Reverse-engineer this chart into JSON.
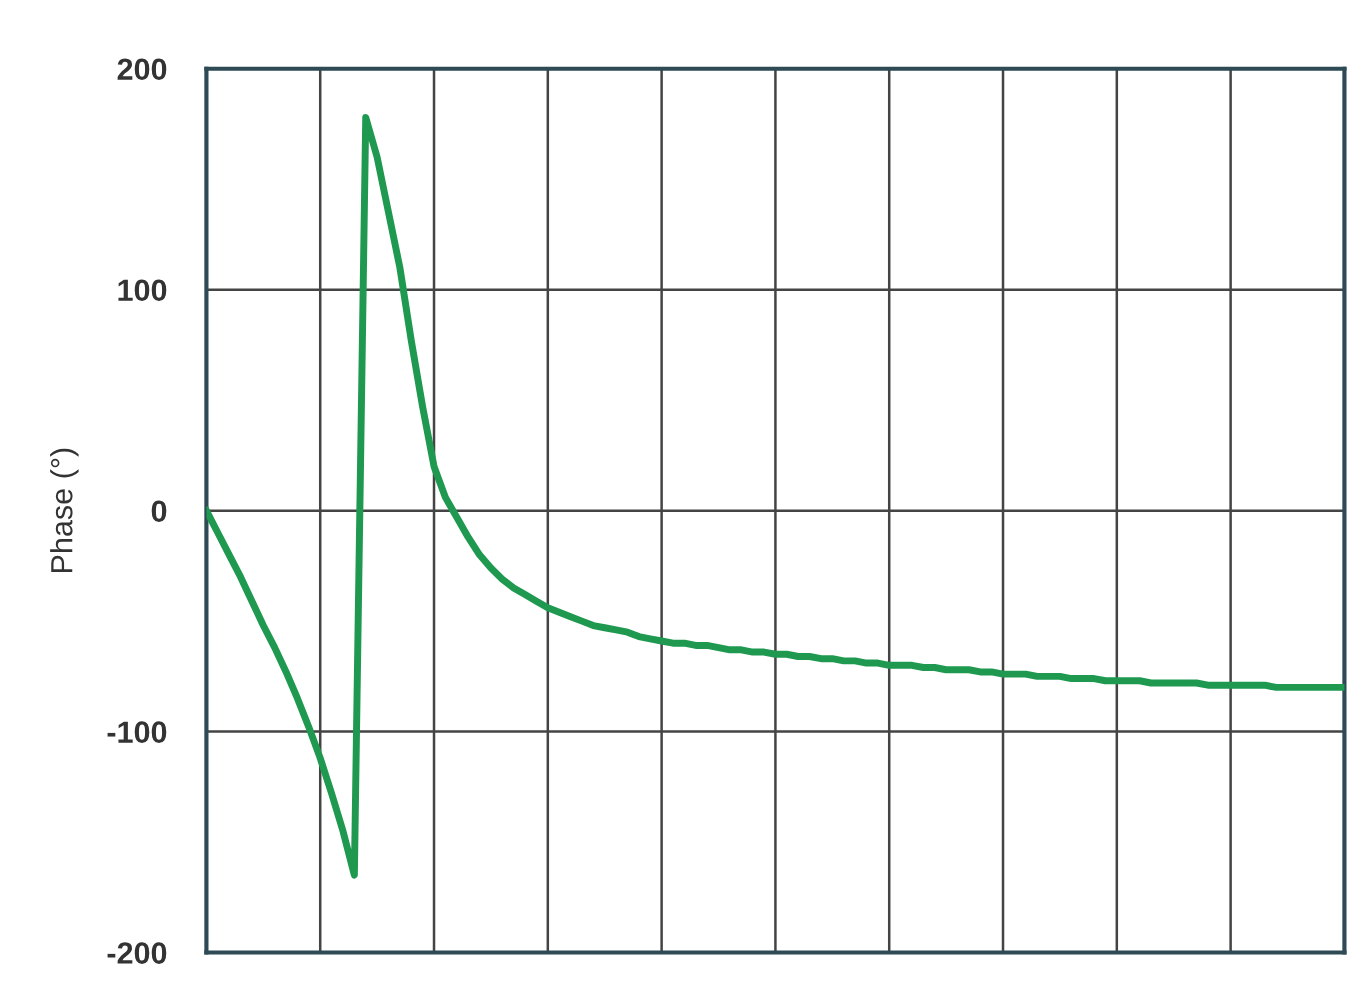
{
  "chart_data": {
    "type": "line",
    "ylabel": "Phase (°)",
    "categories": [
      null,
      null,
      null,
      null,
      null,
      null,
      null,
      null,
      null,
      null,
      null,
      null,
      null,
      null,
      null,
      null,
      null,
      null,
      null,
      null,
      null,
      null,
      null,
      null,
      null,
      null,
      null,
      null,
      null,
      null,
      null,
      null,
      null,
      null,
      null,
      null,
      null,
      null,
      null,
      null,
      null,
      null,
      null,
      null,
      null,
      null,
      null,
      null,
      null,
      null,
      null,
      null,
      null,
      null,
      null,
      null,
      null,
      null,
      null,
      null,
      null,
      null,
      null,
      null,
      null,
      null,
      null,
      null,
      null,
      null,
      null,
      null,
      null,
      null,
      null,
      null,
      null,
      null,
      null,
      null,
      null,
      null,
      null,
      null,
      null,
      null,
      null,
      null,
      null,
      null,
      null,
      null,
      null,
      null,
      null,
      null,
      null,
      null,
      null,
      null,
      null
    ],
    "series": [
      {
        "color": "#1f9950",
        "values": [
          0,
          -10,
          -20,
          -30,
          -41,
          -52,
          -62,
          -73,
          -85,
          -98,
          -112,
          -128,
          -145,
          -165,
          178,
          160,
          135,
          110,
          77,
          47,
          20,
          6,
          -3,
          -12,
          -20,
          -26,
          -31,
          -35,
          -38,
          -41,
          -44,
          -46,
          -48,
          -50,
          -52,
          -53,
          -54,
          -55,
          -57,
          -58,
          -59,
          -60,
          -60,
          -61,
          -61,
          -62,
          -63,
          -63,
          -64,
          -64,
          -65,
          -65,
          -66,
          -66,
          -67,
          -67,
          -68,
          -68,
          -69,
          -69,
          -70,
          -70,
          -70,
          -71,
          -71,
          -72,
          -72,
          -72,
          -73,
          -73,
          -74,
          -74,
          -74,
          -75,
          -75,
          -75,
          -76,
          -76,
          -76,
          -77,
          -77,
          -77,
          -77,
          -78,
          -78,
          -78,
          -78,
          -78,
          -79,
          -79,
          -79,
          -79,
          -79,
          -79,
          -80,
          -80,
          -80,
          -80,
          -80,
          -80,
          -80
        ]
      }
    ],
    "ylim": [
      -200,
      200
    ],
    "yticks": [
      -200,
      -100,
      0,
      100,
      200
    ],
    "grid": true,
    "legend": false,
    "marker": "none",
    "line_style": "solid"
  }
}
